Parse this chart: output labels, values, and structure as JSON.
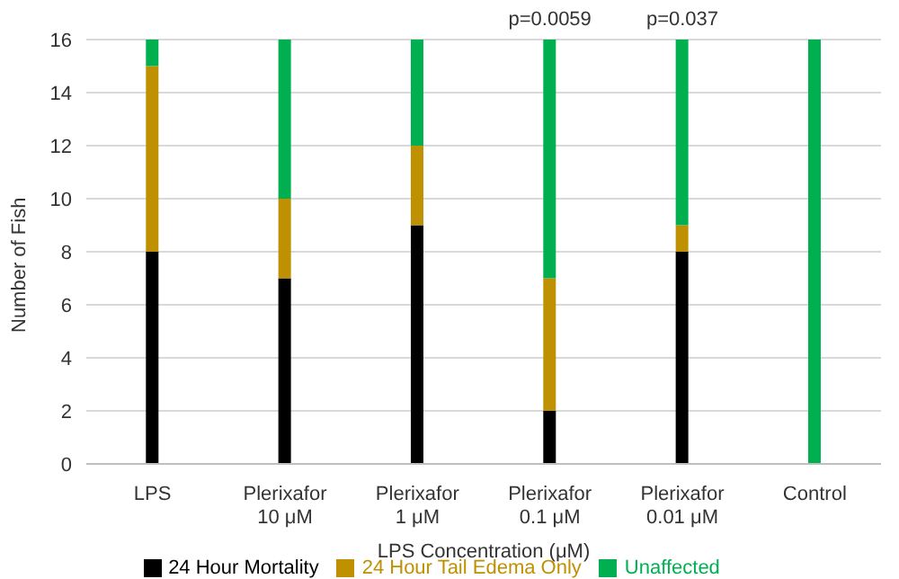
{
  "chart_data": {
    "type": "bar",
    "stacked": true,
    "xlabel": "LPS Concentration (μM)",
    "ylabel": "Number of Fish",
    "categories": [
      "LPS",
      "Plerixafor 10 μM",
      "Plerixafor 1 μM",
      "Plerixafor 0.1 μM",
      "Plerixafor 0.01 μM",
      "Control"
    ],
    "series": [
      {
        "name": "24 Hour Mortality",
        "color": "#000000",
        "values": [
          8,
          7,
          9,
          2,
          8,
          0
        ]
      },
      {
        "name": "24 Hour Tail Edema Only",
        "color": "#bf9000",
        "values": [
          7,
          3,
          3,
          5,
          1,
          0
        ]
      },
      {
        "name": "Unaffected",
        "color": "#00b050",
        "values": [
          1,
          6,
          4,
          9,
          7,
          16
        ]
      }
    ],
    "ylim": [
      0,
      16
    ],
    "yticks": [
      0,
      2,
      4,
      6,
      8,
      10,
      12,
      14,
      16
    ],
    "grid": "y",
    "legend": "bottom",
    "annotations": [
      {
        "text": "p=0.0059",
        "x": "Plerixafor 0.1 μM",
        "y": 16
      },
      {
        "text": "p=0.037",
        "x": "Plerixafor 0.01 μM",
        "y": 16
      }
    ]
  }
}
